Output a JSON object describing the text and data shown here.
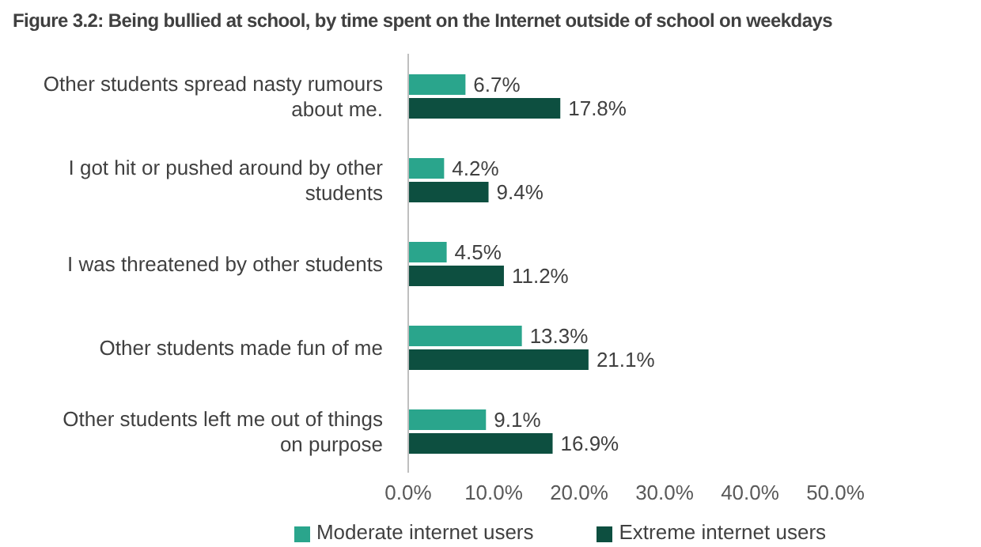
{
  "chart_data": {
    "type": "bar",
    "orientation": "horizontal",
    "title": "Figure 3.2: Being bullied at school, by time spent on the Internet outside of school on weekdays",
    "categories": [
      "Other students spread nasty rumours about me.",
      "I got hit or pushed around by other students",
      "I was threatened by other students",
      "Other students made fun of me",
      "Other students left me out of things on purpose"
    ],
    "series": [
      {
        "name": "Moderate internet users",
        "color": "#2aa58c",
        "values": [
          6.7,
          4.2,
          4.5,
          13.3,
          9.1
        ],
        "value_labels": [
          "6.7%",
          "4.2%",
          "4.5%",
          "13.3%",
          "9.1%"
        ]
      },
      {
        "name": "Extreme internet users",
        "color": "#0d4f40",
        "values": [
          17.8,
          9.4,
          11.2,
          21.1,
          16.9
        ],
        "value_labels": [
          "17.8%",
          "9.4%",
          "11.2%",
          "21.1%",
          "16.9%"
        ]
      }
    ],
    "xlim": [
      0,
      50
    ],
    "xticks": [
      {
        "value": 0,
        "label": "0.0%"
      },
      {
        "value": 10,
        "label": "10.0%"
      },
      {
        "value": 20,
        "label": "20.0%"
      },
      {
        "value": 30,
        "label": "30.0%"
      },
      {
        "value": 40,
        "label": "40.0%"
      },
      {
        "value": 50,
        "label": "50.0%"
      }
    ],
    "grid": false,
    "legend": "bottom"
  }
}
